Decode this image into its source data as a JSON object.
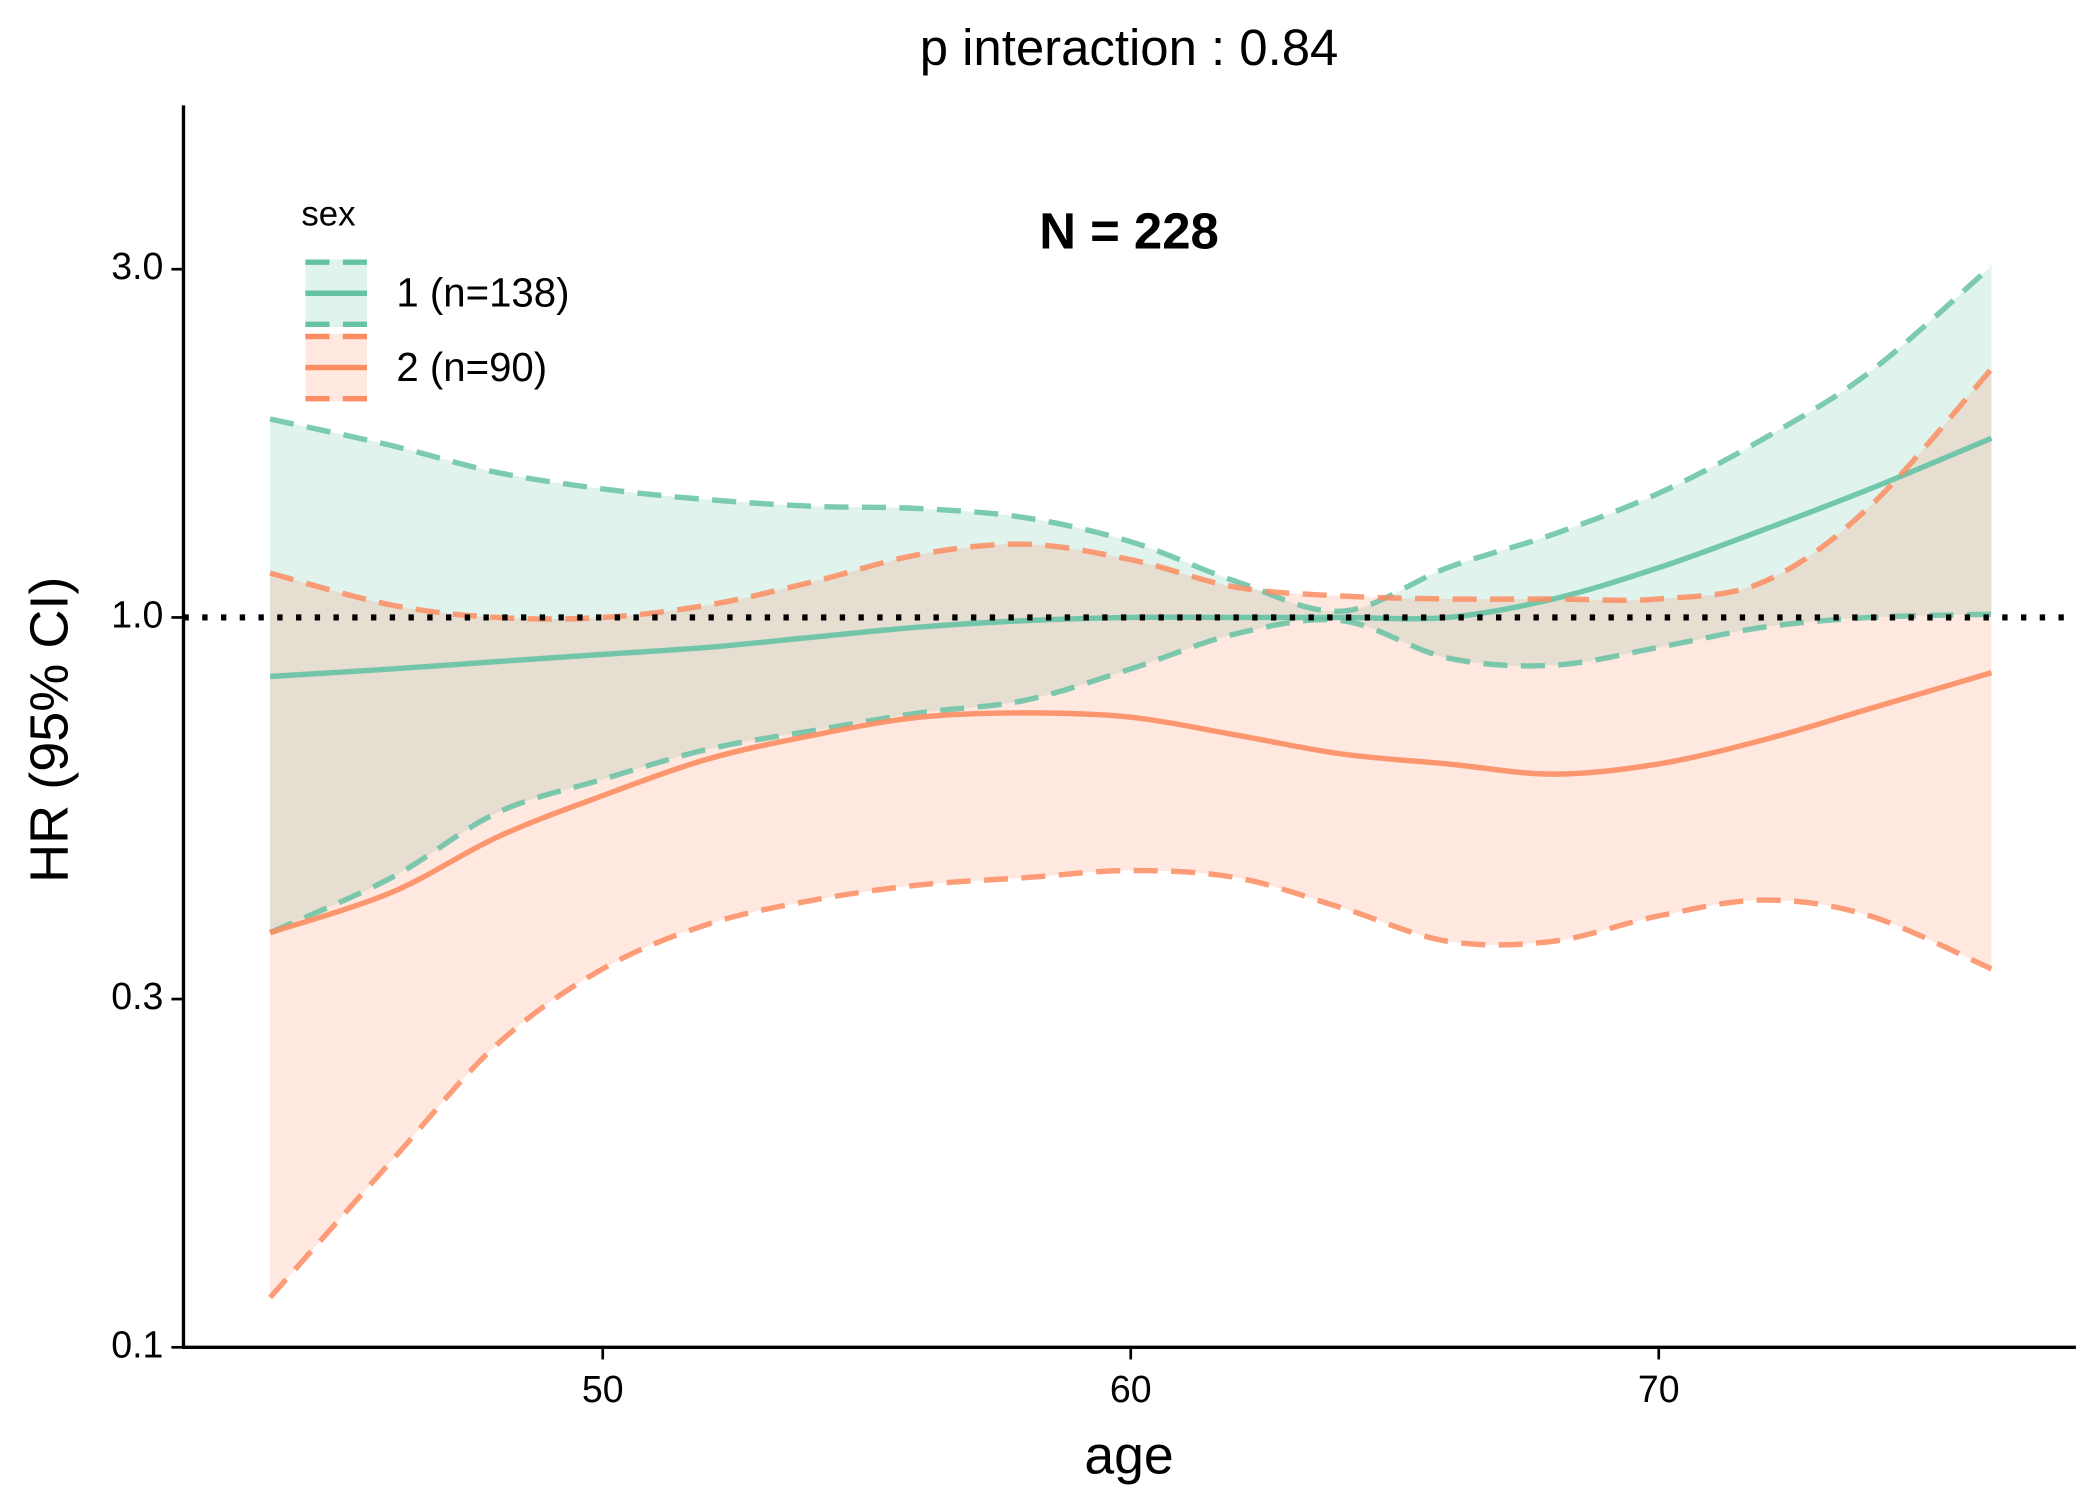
{
  "chart_data": {
    "type": "line",
    "title": "p interaction : 0.84",
    "annotation": "N = 228",
    "x_label": "age",
    "y_label": "HR (95% CI)",
    "legend_title": "sex",
    "legend_position": "top-left",
    "log_y": true,
    "hline": 1,
    "xlim": [
      42.06,
      77.9
    ],
    "xticks": [
      50,
      60,
      70
    ],
    "ylim": [
      0.1,
      5.03
    ],
    "yticks": [
      0.1,
      0.3,
      {
        "value": 1,
        "label": "1.0"
      },
      {
        "value": 3,
        "label": "3.0"
      }
    ],
    "x": [
      43.7,
      46,
      48,
      50,
      52,
      54,
      56,
      58,
      60,
      62,
      64,
      66,
      68,
      70,
      72,
      74,
      76.3
    ],
    "series": [
      {
        "name": "1 (n=138)",
        "color": "#66c2a5",
        "values": [
          0.83,
          0.85,
          0.87,
          0.89,
          0.91,
          0.94,
          0.97,
          0.99,
          1.0,
          1.0,
          1.0,
          1.0,
          1.06,
          1.17,
          1.32,
          1.5,
          1.76
        ],
        "upper": [
          1.87,
          1.72,
          1.58,
          1.5,
          1.45,
          1.42,
          1.41,
          1.37,
          1.27,
          1.12,
          1.02,
          1.17,
          1.3,
          1.48,
          1.76,
          2.17,
          3.03
        ],
        "lower": [
          0.37,
          0.44,
          0.54,
          0.6,
          0.66,
          0.7,
          0.74,
          0.77,
          0.85,
          0.95,
          0.99,
          0.88,
          0.86,
          0.91,
          0.97,
          1.0,
          1.01
        ]
      },
      {
        "name": "2 (n=90)",
        "color": "#fc8d62",
        "values": [
          0.37,
          0.42,
          0.5,
          0.57,
          0.64,
          0.69,
          0.73,
          0.74,
          0.73,
          0.69,
          0.65,
          0.63,
          0.61,
          0.63,
          0.68,
          0.75,
          0.84
        ],
        "upper": [
          1.15,
          1.04,
          1.0,
          1.0,
          1.04,
          1.12,
          1.22,
          1.26,
          1.2,
          1.1,
          1.07,
          1.06,
          1.06,
          1.06,
          1.12,
          1.42,
          2.19
        ],
        "lower": [
          0.117,
          0.18,
          0.26,
          0.33,
          0.38,
          0.41,
          0.43,
          0.44,
          0.45,
          0.44,
          0.4,
          0.36,
          0.36,
          0.39,
          0.41,
          0.39,
          0.33
        ]
      }
    ]
  }
}
